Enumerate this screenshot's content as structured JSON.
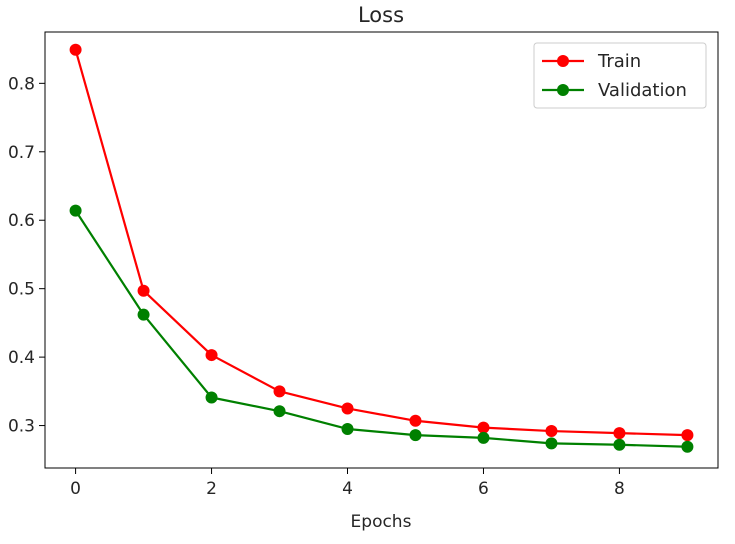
{
  "chart_data": {
    "type": "line",
    "title": "Loss",
    "xlabel": "Epochs",
    "ylabel": "",
    "x": [
      0,
      1,
      2,
      3,
      4,
      5,
      6,
      7,
      8,
      9
    ],
    "xticks": [
      0,
      2,
      4,
      6,
      8
    ],
    "yticks": [
      0.3,
      0.4,
      0.5,
      0.6,
      0.7,
      0.8
    ],
    "xlim": [
      -0.45,
      9.45
    ],
    "ylim": [
      0.238,
      0.875
    ],
    "grid": false,
    "legend_position": "top-right",
    "series": [
      {
        "name": "Train",
        "color": "#ff0000",
        "values": [
          0.849,
          0.497,
          0.403,
          0.35,
          0.325,
          0.307,
          0.297,
          0.292,
          0.289,
          0.286
        ]
      },
      {
        "name": "Validation",
        "color": "#008000",
        "values": [
          0.614,
          0.462,
          0.341,
          0.321,
          0.295,
          0.286,
          0.282,
          0.274,
          0.272,
          0.269
        ]
      }
    ]
  }
}
